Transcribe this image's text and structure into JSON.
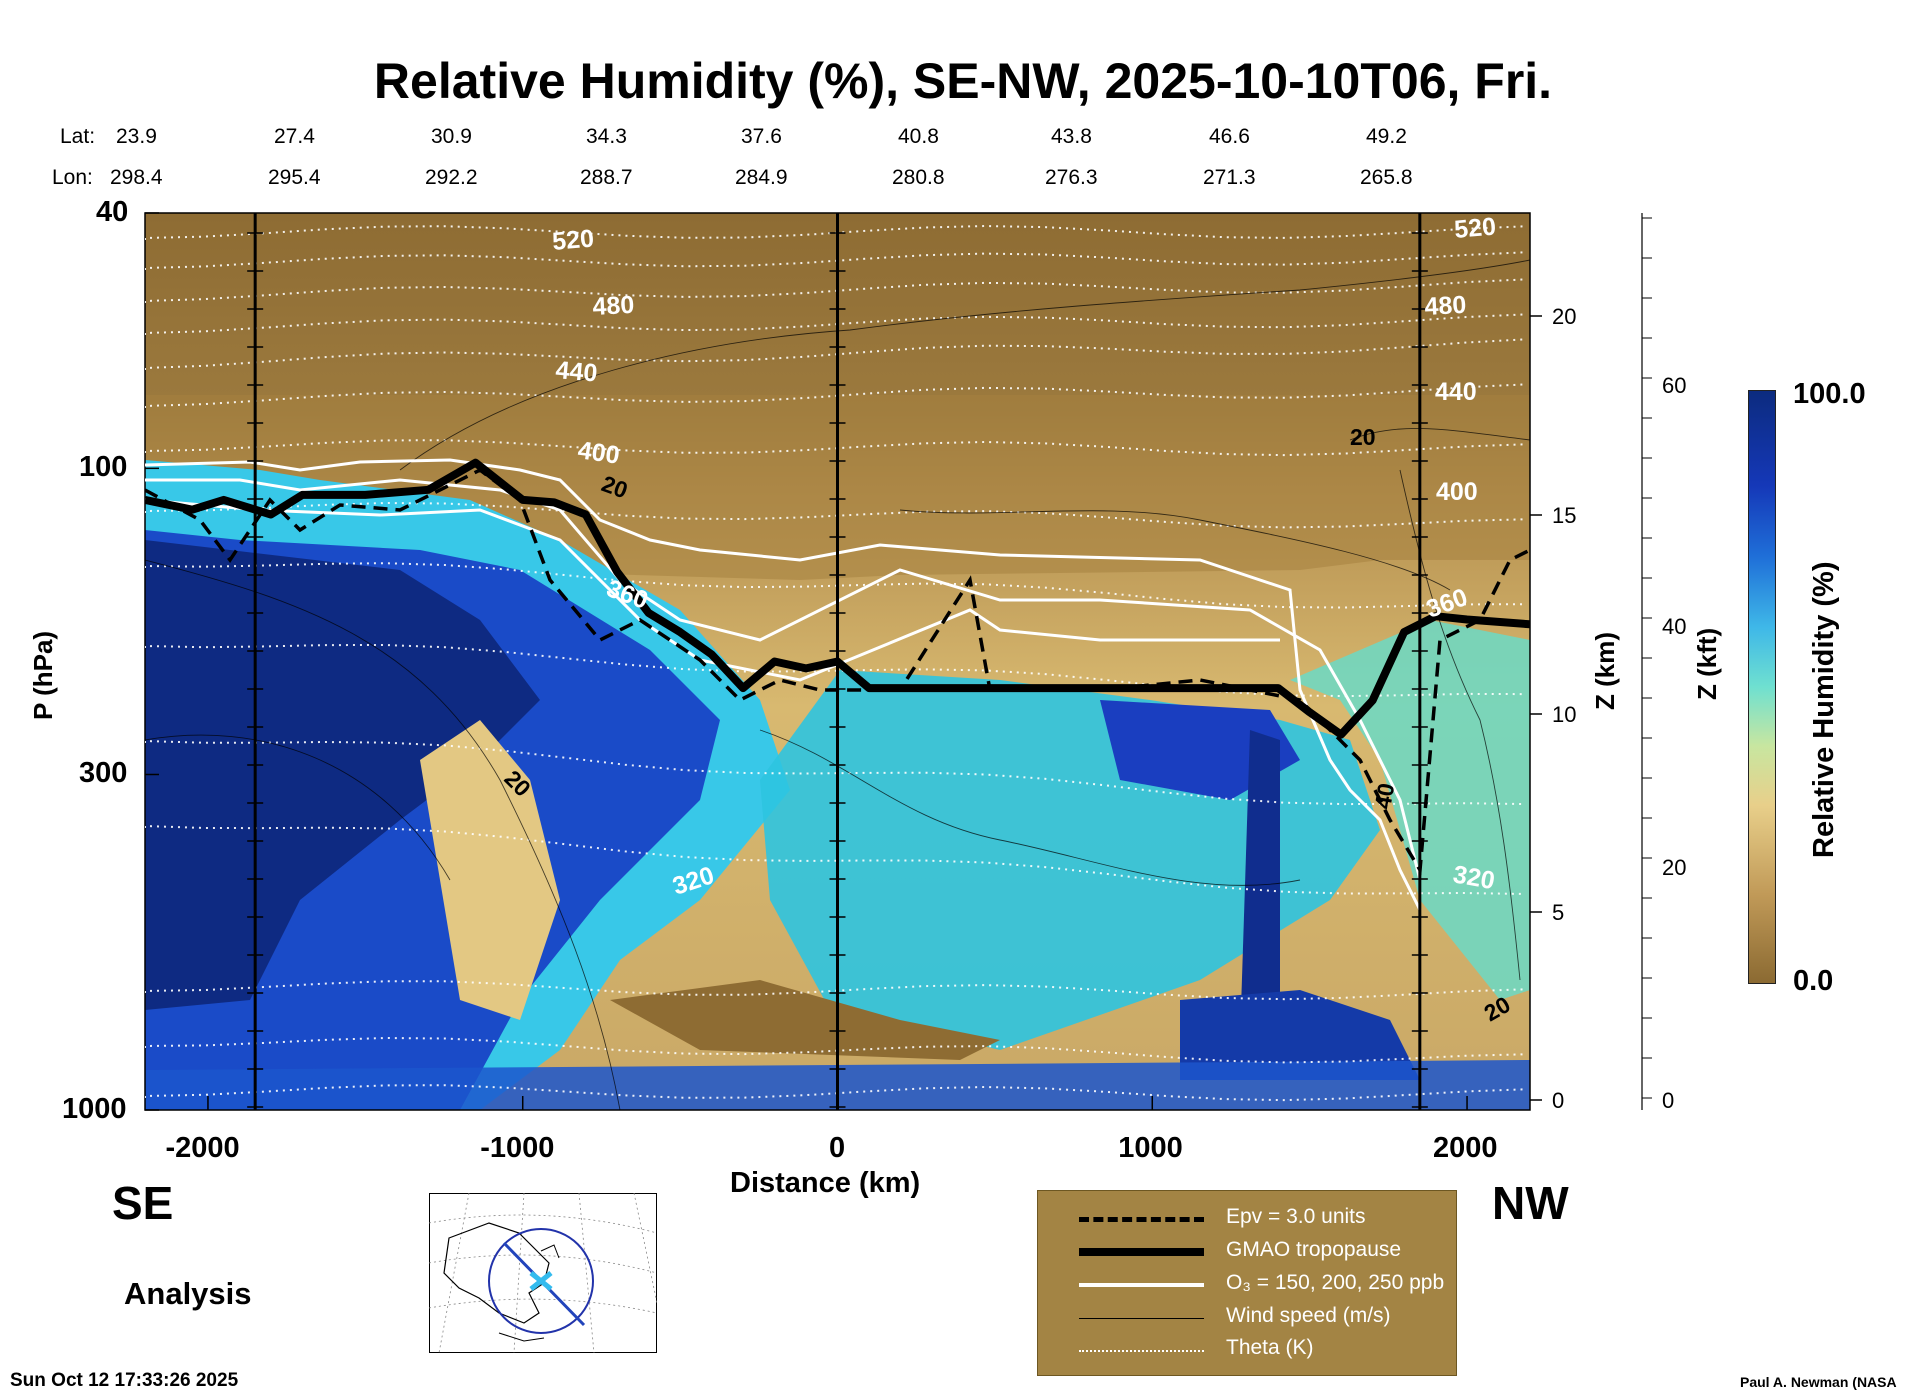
{
  "chart_data": {
    "type": "heatmap",
    "title": "Relative Humidity (%), SE-NW, 2025-10-10T06, Fri.",
    "xlabel": "Distance (km)",
    "ylabel": "P (hPa)",
    "y2label": "Z (km)",
    "y3label": "Z (kft)",
    "colorbar_label": "Relative Humidity (%)",
    "colorbar_range": [
      0.0,
      100.0
    ],
    "colorbar_ticks": [
      "100.0",
      "0.0"
    ],
    "xlim": [
      -2200,
      2200
    ],
    "ylim": [
      1000,
      40
    ],
    "y_scale": "log",
    "x_ticks": [
      "-2000",
      "-1000",
      "0",
      "1000",
      "2000"
    ],
    "y_ticks": [
      "40",
      "100",
      "300",
      "1000"
    ],
    "z_km_ticks": [
      "20",
      "15",
      "10",
      "5",
      "0"
    ],
    "z_kft_ticks": [
      "60",
      "40",
      "20",
      "0"
    ],
    "lat_label": "Lat:",
    "lon_label": "Lon:",
    "lat": [
      "23.9",
      "27.4",
      "30.9",
      "34.3",
      "37.6",
      "40.8",
      "43.8",
      "46.6",
      "49.2"
    ],
    "lon": [
      "298.4",
      "295.4",
      "292.2",
      "288.7",
      "284.9",
      "280.8",
      "276.3",
      "271.3",
      "265.8"
    ],
    "theta_labels": [
      "520",
      "480",
      "440",
      "400",
      "360",
      "320"
    ],
    "wind_labels": [
      "20",
      "40"
    ],
    "tropopause": [
      [
        -2200,
        112
      ],
      [
        -2050,
        116
      ],
      [
        -1950,
        112
      ],
      [
        -1800,
        118
      ],
      [
        -1700,
        110
      ],
      [
        -1500,
        110
      ],
      [
        -1300,
        108
      ],
      [
        -1150,
        98
      ],
      [
        -1000,
        112
      ],
      [
        -900,
        113
      ],
      [
        -800,
        118
      ],
      [
        -700,
        145
      ],
      [
        -600,
        168
      ],
      [
        -500,
        180
      ],
      [
        -400,
        195
      ],
      [
        -300,
        220
      ],
      [
        -200,
        200
      ],
      [
        -100,
        205
      ],
      [
        0,
        200
      ],
      [
        100,
        220
      ],
      [
        500,
        220
      ],
      [
        1000,
        220
      ],
      [
        1400,
        220
      ],
      [
        1500,
        240
      ],
      [
        1600,
        260
      ],
      [
        1700,
        230
      ],
      [
        1800,
        180
      ],
      [
        1900,
        170
      ],
      [
        2000,
        172
      ],
      [
        2200,
        175
      ]
    ],
    "notes": {
      "direction_left": "SE",
      "direction_right": "NW",
      "mode": "Analysis"
    },
    "legend": [
      {
        "style": "dashed",
        "label": "Epv = 3.0 units"
      },
      {
        "style": "thick",
        "label": "GMAO tropopause"
      },
      {
        "style": "white",
        "label": "O₃ = 150, 200, 250 ppb"
      },
      {
        "style": "thin",
        "label": "Wind speed (m/s)"
      },
      {
        "style": "dotted",
        "label": "Theta (K)"
      }
    ]
  },
  "footer": {
    "timestamp": "Sun Oct 12 17:33:26 2025",
    "credit": "Paul A. Newman (NASA"
  }
}
